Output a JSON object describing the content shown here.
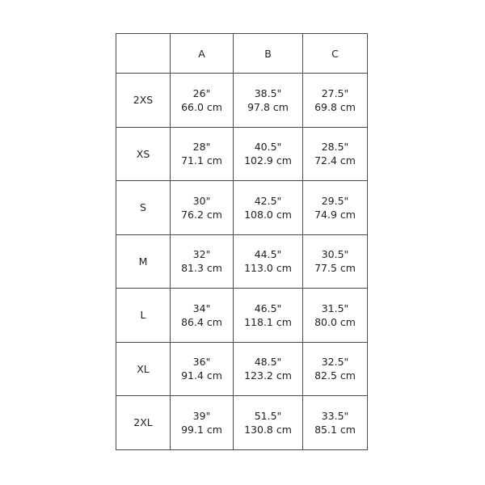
{
  "table": {
    "headers": [
      "",
      "A",
      "B",
      "C"
    ],
    "rows": [
      {
        "size": "2XS",
        "cells": [
          [
            "26\"",
            "66.0 cm"
          ],
          [
            "38.5\"",
            "97.8 cm"
          ],
          [
            "27.5\"",
            "69.8 cm"
          ]
        ]
      },
      {
        "size": "XS",
        "cells": [
          [
            "28\"",
            "71.1 cm"
          ],
          [
            "40.5\"",
            "102.9 cm"
          ],
          [
            "28.5\"",
            "72.4 cm"
          ]
        ]
      },
      {
        "size": "S",
        "cells": [
          [
            "30\"",
            "76.2 cm"
          ],
          [
            "42.5\"",
            "108.0 cm"
          ],
          [
            "29.5\"",
            "74.9 cm"
          ]
        ]
      },
      {
        "size": "M",
        "cells": [
          [
            "32\"",
            "81.3 cm"
          ],
          [
            "44.5\"",
            "113.0 cm"
          ],
          [
            "30.5\"",
            "77.5 cm"
          ]
        ]
      },
      {
        "size": "L",
        "cells": [
          [
            "34\"",
            "86.4 cm"
          ],
          [
            "46.5\"",
            "118.1 cm"
          ],
          [
            "31.5\"",
            "80.0 cm"
          ]
        ]
      },
      {
        "size": "XL",
        "cells": [
          [
            "36\"",
            "91.4 cm"
          ],
          [
            "48.5\"",
            "123.2 cm"
          ],
          [
            "32.5\"",
            "82.5 cm"
          ]
        ]
      },
      {
        "size": "2XL",
        "cells": [
          [
            "39\"",
            "99.1 cm"
          ],
          [
            "51.5\"",
            "130.8 cm"
          ],
          [
            "33.5\"",
            "85.1 cm"
          ]
        ]
      }
    ]
  }
}
